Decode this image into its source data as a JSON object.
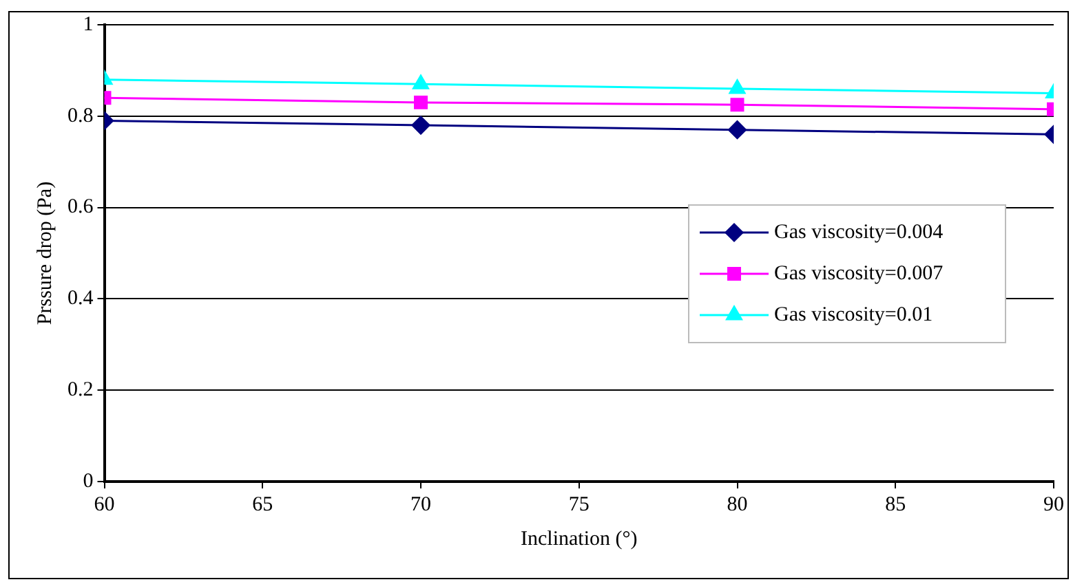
{
  "chart_data": {
    "type": "line",
    "xlabel": "Inclination (°)",
    "ylabel": "Prssure drop (Pa)",
    "x": [
      60,
      70,
      80,
      90
    ],
    "xlim": [
      60,
      90
    ],
    "xticks": [
      60,
      65,
      70,
      75,
      80,
      85,
      90
    ],
    "ylim": [
      0,
      1
    ],
    "yticks": [
      0,
      0.2,
      0.4,
      0.6,
      0.8,
      1
    ],
    "grid": "y",
    "legend": "right",
    "series": [
      {
        "name": "Gas viscosity=0.004",
        "color": "#000080",
        "marker": "diamond",
        "values": [
          0.79,
          0.78,
          0.77,
          0.76
        ]
      },
      {
        "name": "Gas viscosity=0.007",
        "color": "#ff00ff",
        "marker": "square",
        "values": [
          0.84,
          0.83,
          0.825,
          0.815
        ]
      },
      {
        "name": "Gas viscosity=0.01",
        "color": "#00ffff",
        "marker": "triangle",
        "values": [
          0.88,
          0.87,
          0.86,
          0.85
        ]
      }
    ]
  }
}
